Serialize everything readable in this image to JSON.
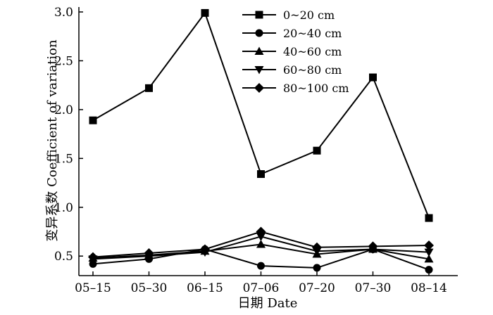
{
  "chart_data": {
    "type": "line",
    "title": "",
    "xlabel": "日期 Date",
    "ylabel": "变异系数 Coefficient of variation",
    "categories": [
      "05–15",
      "05–30",
      "06–15",
      "07–06",
      "07–20",
      "07–30",
      "08–14"
    ],
    "ylim": [
      0.3,
      3.0
    ],
    "yticks": [
      "3.0",
      "2.5",
      "2.0",
      "1.5",
      "1.0",
      "0.5"
    ],
    "ytick_values": [
      3.0,
      2.5,
      2.0,
      1.5,
      1.0,
      0.5
    ],
    "grid": false,
    "legend_position": "top-right",
    "series": [
      {
        "name": "0~20 cm",
        "marker": "square",
        "values": [
          1.89,
          2.22,
          2.99,
          1.34,
          1.58,
          2.33,
          0.89
        ]
      },
      {
        "name": "20~40 cm",
        "marker": "circle",
        "values": [
          0.42,
          0.47,
          0.57,
          0.4,
          0.38,
          0.57,
          0.36
        ]
      },
      {
        "name": "40~60 cm",
        "marker": "triangle-up",
        "values": [
          0.48,
          0.51,
          0.55,
          0.62,
          0.52,
          0.57,
          0.47
        ]
      },
      {
        "name": "60~80 cm",
        "marker": "triangle-down",
        "values": [
          0.47,
          0.5,
          0.54,
          0.7,
          0.55,
          0.57,
          0.54
        ]
      },
      {
        "name": "80~100 cm",
        "marker": "diamond",
        "values": [
          0.49,
          0.53,
          0.57,
          0.75,
          0.59,
          0.6,
          0.61
        ]
      }
    ]
  }
}
